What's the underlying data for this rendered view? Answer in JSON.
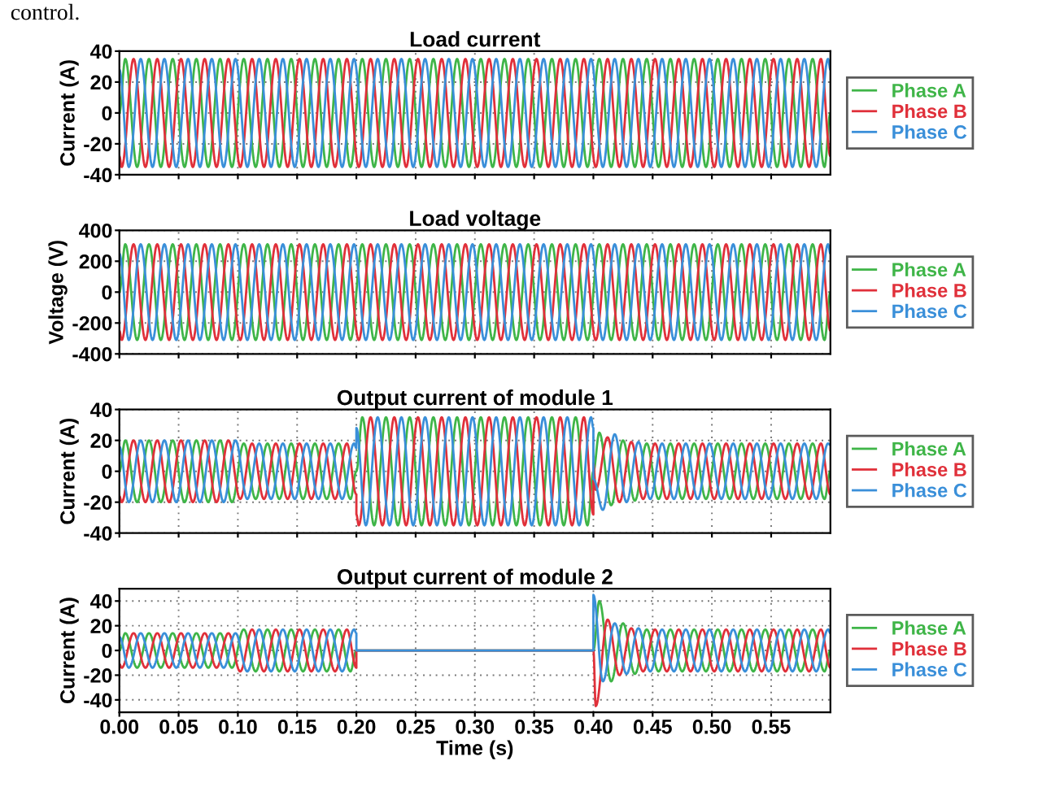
{
  "chart_data": [
    {
      "type": "line",
      "title": "Load current",
      "ylabel": "Current (A)",
      "annotations": [
        "control."
      ],
      "xlim": [
        0,
        0.6
      ],
      "xticks": [
        0,
        0.05,
        0.1,
        0.15,
        0.2,
        0.25,
        0.3,
        0.35,
        0.4,
        0.45,
        0.5,
        0.55
      ],
      "ylim": [
        -40,
        40
      ],
      "yticks": [
        -40,
        -20,
        0,
        20,
        40
      ],
      "grid": true,
      "legend": "right",
      "tick_labels": "y",
      "line_style": "solid",
      "series": [
        {
          "name": "Phase A",
          "color": "#3fb548",
          "x": [
            0,
            0.005,
            0.015,
            0.025,
            0.035,
            0.045,
            0.055,
            0.065,
            0.075,
            0.085,
            0.095,
            0.105,
            0.115,
            0.125,
            0.135,
            0.145,
            0.155,
            0.165,
            0.175,
            0.185,
            0.195,
            0.205,
            0.215,
            0.225,
            0.235,
            0.245,
            0.255,
            0.265,
            0.275,
            0.285,
            0.295,
            0.305,
            0.315,
            0.325,
            0.335,
            0.345,
            0.355,
            0.365,
            0.375,
            0.385,
            0.395,
            0.405,
            0.415,
            0.425,
            0.435,
            0.445,
            0.455,
            0.465,
            0.475,
            0.485,
            0.495,
            0.505,
            0.515,
            0.525,
            0.535,
            0.545,
            0.555,
            0.565,
            0.575,
            0.585,
            0.595,
            0.6
          ],
          "values": [
            0,
            35,
            -35,
            35,
            -35,
            35,
            -35,
            35,
            -35,
            35,
            -35,
            35,
            -35,
            35,
            -35,
            35,
            -35,
            35,
            -35,
            35,
            -35,
            35,
            -35,
            35,
            -35,
            35,
            -35,
            35,
            -35,
            35,
            -35,
            35,
            -35,
            35,
            -35,
            35,
            -35,
            35,
            -35,
            35,
            -35,
            35,
            -35,
            35,
            -35,
            35,
            -35,
            35,
            -35,
            35,
            -35,
            35,
            -35,
            35,
            -35,
            35,
            -35,
            35,
            -35,
            35,
            -35,
            0
          ]
        },
        {
          "name": "Phase B",
          "color": "#e0303a",
          "x": [
            0,
            0.002,
            0.012,
            0.022,
            0.032,
            0.042,
            0.052,
            0.062,
            0.072,
            0.082,
            0.092,
            0.102,
            0.112,
            0.122,
            0.132,
            0.142,
            0.152,
            0.162,
            0.172,
            0.182,
            0.192,
            0.202,
            0.212,
            0.222,
            0.232,
            0.242,
            0.252,
            0.262,
            0.272,
            0.282,
            0.292,
            0.302,
            0.312,
            0.322,
            0.332,
            0.342,
            0.352,
            0.362,
            0.372,
            0.382,
            0.392,
            0.402,
            0.412,
            0.422,
            0.432,
            0.442,
            0.452,
            0.462,
            0.472,
            0.482,
            0.492,
            0.502,
            0.512,
            0.522,
            0.532,
            0.542,
            0.552,
            0.562,
            0.572,
            0.582,
            0.592,
            0.6
          ],
          "values": [
            -28,
            -35,
            35,
            -35,
            35,
            -35,
            35,
            -35,
            35,
            -35,
            35,
            -35,
            35,
            -35,
            35,
            -35,
            35,
            -35,
            35,
            -35,
            35,
            -35,
            35,
            -35,
            35,
            -35,
            35,
            -35,
            35,
            -35,
            35,
            -35,
            35,
            -35,
            35,
            -35,
            35,
            -35,
            35,
            -35,
            35,
            -35,
            35,
            -35,
            35,
            -35,
            35,
            -35,
            35,
            -35,
            35,
            -35,
            35,
            -35,
            35,
            -35,
            35,
            -35,
            35,
            -35,
            35,
            -28
          ]
        },
        {
          "name": "Phase C",
          "color": "#3a8fd9",
          "x": [
            0,
            0.008,
            0.018,
            0.028,
            0.038,
            0.048,
            0.058,
            0.068,
            0.078,
            0.088,
            0.098,
            0.108,
            0.118,
            0.128,
            0.138,
            0.148,
            0.158,
            0.168,
            0.178,
            0.188,
            0.198,
            0.208,
            0.218,
            0.228,
            0.238,
            0.248,
            0.258,
            0.268,
            0.278,
            0.288,
            0.298,
            0.308,
            0.318,
            0.328,
            0.338,
            0.348,
            0.358,
            0.368,
            0.378,
            0.388,
            0.398,
            0.408,
            0.418,
            0.428,
            0.438,
            0.448,
            0.458,
            0.468,
            0.478,
            0.488,
            0.498,
            0.508,
            0.518,
            0.528,
            0.538,
            0.548,
            0.558,
            0.568,
            0.578,
            0.588,
            0.598,
            0.6
          ],
          "values": [
            28,
            -35,
            35,
            -35,
            35,
            -35,
            35,
            -35,
            35,
            -35,
            35,
            -35,
            35,
            -35,
            35,
            -35,
            35,
            -35,
            35,
            -35,
            35,
            -35,
            35,
            -35,
            35,
            -35,
            35,
            -35,
            35,
            -35,
            35,
            -35,
            35,
            -35,
            35,
            -35,
            35,
            -35,
            35,
            -35,
            35,
            -35,
            35,
            -35,
            35,
            -35,
            35,
            -35,
            35,
            -35,
            35,
            -35,
            35,
            -35,
            35,
            -35,
            35,
            -35,
            35,
            -35,
            35,
            28
          ]
        }
      ]
    },
    {
      "type": "line",
      "title": "Load voltage",
      "ylabel": "Voltage (V)",
      "xlim": [
        0,
        0.6
      ],
      "xticks": [
        0,
        0.05,
        0.1,
        0.15,
        0.2,
        0.25,
        0.3,
        0.35,
        0.4,
        0.45,
        0.5,
        0.55
      ],
      "ylim": [
        -400,
        400
      ],
      "yticks": [
        -400,
        -200,
        0,
        200,
        400
      ],
      "grid": true,
      "legend": "right",
      "tick_labels": "y",
      "line_style": "solid",
      "series": [
        {
          "name": "Phase A",
          "color": "#3fb548",
          "x": [
            0,
            0.005,
            0.015,
            0.025,
            0.035,
            0.045,
            0.055,
            0.065,
            0.075,
            0.085,
            0.095,
            0.105,
            0.115,
            0.125,
            0.135,
            0.145,
            0.155,
            0.165,
            0.175,
            0.185,
            0.195,
            0.205,
            0.215,
            0.225,
            0.235,
            0.245,
            0.255,
            0.265,
            0.275,
            0.285,
            0.295,
            0.305,
            0.315,
            0.325,
            0.335,
            0.345,
            0.355,
            0.365,
            0.375,
            0.385,
            0.395,
            0.405,
            0.415,
            0.425,
            0.435,
            0.445,
            0.455,
            0.465,
            0.475,
            0.485,
            0.495,
            0.505,
            0.515,
            0.525,
            0.535,
            0.545,
            0.555,
            0.565,
            0.575,
            0.585,
            0.595,
            0.6
          ],
          "values": [
            0,
            310,
            -310,
            310,
            -310,
            310,
            -310,
            310,
            -310,
            310,
            -310,
            310,
            -310,
            310,
            -310,
            310,
            -310,
            310,
            -310,
            310,
            -310,
            310,
            -310,
            310,
            -310,
            310,
            -310,
            310,
            -310,
            310,
            -310,
            310,
            -310,
            310,
            -310,
            310,
            -310,
            310,
            -310,
            310,
            -310,
            310,
            -310,
            310,
            -310,
            310,
            -310,
            310,
            -310,
            310,
            -310,
            310,
            -310,
            310,
            -310,
            310,
            -310,
            310,
            -310,
            310,
            -310,
            0
          ]
        },
        {
          "name": "Phase B",
          "color": "#e0303a",
          "x": [
            0,
            0.002,
            0.012,
            0.022,
            0.032,
            0.042,
            0.052,
            0.062,
            0.072,
            0.082,
            0.092,
            0.102,
            0.112,
            0.122,
            0.132,
            0.142,
            0.152,
            0.162,
            0.172,
            0.182,
            0.192,
            0.202,
            0.212,
            0.222,
            0.232,
            0.242,
            0.252,
            0.262,
            0.272,
            0.282,
            0.292,
            0.302,
            0.312,
            0.322,
            0.332,
            0.342,
            0.352,
            0.362,
            0.372,
            0.382,
            0.392,
            0.402,
            0.412,
            0.422,
            0.432,
            0.442,
            0.452,
            0.462,
            0.472,
            0.482,
            0.492,
            0.502,
            0.512,
            0.522,
            0.532,
            0.542,
            0.552,
            0.562,
            0.572,
            0.582,
            0.592,
            0.6
          ],
          "values": [
            -250,
            -310,
            310,
            -310,
            310,
            -310,
            310,
            -310,
            310,
            -310,
            310,
            -310,
            310,
            -310,
            310,
            -310,
            310,
            -310,
            310,
            -310,
            310,
            -310,
            310,
            -310,
            310,
            -310,
            310,
            -310,
            310,
            -310,
            310,
            -310,
            310,
            -310,
            310,
            -310,
            310,
            -310,
            310,
            -310,
            310,
            -310,
            310,
            -310,
            310,
            -310,
            310,
            -310,
            310,
            -310,
            310,
            -310,
            310,
            -310,
            310,
            -310,
            310,
            -310,
            310,
            -310,
            310,
            -250
          ]
        },
        {
          "name": "Phase C",
          "color": "#3a8fd9",
          "x": [
            0,
            0.008,
            0.018,
            0.028,
            0.038,
            0.048,
            0.058,
            0.068,
            0.078,
            0.088,
            0.098,
            0.108,
            0.118,
            0.128,
            0.138,
            0.148,
            0.158,
            0.168,
            0.178,
            0.188,
            0.198,
            0.208,
            0.218,
            0.228,
            0.238,
            0.248,
            0.258,
            0.268,
            0.278,
            0.288,
            0.298,
            0.308,
            0.318,
            0.328,
            0.338,
            0.348,
            0.358,
            0.368,
            0.378,
            0.388,
            0.398,
            0.408,
            0.418,
            0.428,
            0.438,
            0.448,
            0.458,
            0.468,
            0.478,
            0.488,
            0.498,
            0.508,
            0.518,
            0.528,
            0.538,
            0.548,
            0.558,
            0.568,
            0.578,
            0.588,
            0.598,
            0.6
          ],
          "values": [
            250,
            -310,
            310,
            -310,
            310,
            -310,
            310,
            -310,
            310,
            -310,
            310,
            -310,
            310,
            -310,
            310,
            -310,
            310,
            -310,
            310,
            -310,
            310,
            -310,
            310,
            -310,
            310,
            -310,
            310,
            -310,
            310,
            -310,
            310,
            -310,
            310,
            -310,
            310,
            -310,
            310,
            -310,
            310,
            -310,
            310,
            -310,
            310,
            -310,
            310,
            -310,
            310,
            -310,
            310,
            -310,
            310,
            -310,
            310,
            -310,
            310,
            -310,
            310,
            -310,
            310,
            -310,
            310,
            250
          ]
        }
      ]
    },
    {
      "type": "line",
      "title": "Output current of module 1",
      "ylabel": "Current (A)",
      "xlim": [
        0,
        0.6
      ],
      "xticks": [
        0,
        0.05,
        0.1,
        0.15,
        0.2,
        0.25,
        0.3,
        0.35,
        0.4,
        0.45,
        0.5,
        0.55
      ],
      "ylim": [
        -40,
        40
      ],
      "yticks": [
        -40,
        -20,
        0,
        20,
        40
      ],
      "grid": true,
      "legend": "right",
      "tick_labels": "y",
      "line_style": "solid",
      "series": [
        {
          "name": "Phase A",
          "color": "#3fb548",
          "x": [
            0,
            0.005,
            0.015,
            0.025,
            0.035,
            0.045,
            0.055,
            0.065,
            0.075,
            0.085,
            0.095,
            0.105,
            0.115,
            0.125,
            0.135,
            0.145,
            0.155,
            0.165,
            0.175,
            0.185,
            0.195,
            0.2,
            0.205,
            0.215,
            0.225,
            0.235,
            0.245,
            0.255,
            0.265,
            0.275,
            0.285,
            0.295,
            0.305,
            0.315,
            0.325,
            0.335,
            0.345,
            0.355,
            0.365,
            0.375,
            0.385,
            0.395,
            0.4,
            0.405,
            0.415,
            0.425,
            0.435,
            0.445,
            0.455,
            0.465,
            0.475,
            0.485,
            0.495,
            0.505,
            0.515,
            0.525,
            0.535,
            0.545,
            0.555,
            0.565,
            0.575,
            0.585,
            0.595,
            0.6
          ],
          "values": [
            0,
            20,
            -20,
            20,
            -20,
            20,
            -20,
            20,
            -20,
            20,
            -20,
            18,
            -18,
            18,
            -18,
            18,
            -18,
            18,
            -18,
            18,
            -18,
            0,
            35,
            -35,
            35,
            -35,
            35,
            -35,
            35,
            -35,
            35,
            -35,
            35,
            -35,
            35,
            -35,
            35,
            -35,
            35,
            -35,
            35,
            -35,
            0,
            25,
            -22,
            20,
            -19,
            18,
            -18,
            18,
            -18,
            18,
            -18,
            18,
            -18,
            18,
            -18,
            18,
            -18,
            18,
            -18,
            18,
            -18,
            0
          ]
        },
        {
          "name": "Phase B",
          "color": "#e0303a",
          "x": [
            0,
            0.002,
            0.012,
            0.022,
            0.032,
            0.042,
            0.052,
            0.062,
            0.072,
            0.082,
            0.092,
            0.102,
            0.112,
            0.122,
            0.132,
            0.142,
            0.152,
            0.162,
            0.172,
            0.182,
            0.192,
            0.2,
            0.2,
            0.202,
            0.212,
            0.222,
            0.232,
            0.242,
            0.252,
            0.262,
            0.272,
            0.282,
            0.292,
            0.302,
            0.312,
            0.322,
            0.332,
            0.342,
            0.352,
            0.362,
            0.372,
            0.382,
            0.392,
            0.4,
            0.4,
            0.402,
            0.412,
            0.422,
            0.432,
            0.442,
            0.452,
            0.462,
            0.472,
            0.482,
            0.492,
            0.502,
            0.512,
            0.522,
            0.532,
            0.542,
            0.552,
            0.562,
            0.572,
            0.582,
            0.592,
            0.6
          ],
          "values": [
            -16,
            -20,
            20,
            -20,
            20,
            -20,
            20,
            -20,
            20,
            -20,
            20,
            -18,
            18,
            -18,
            18,
            -18,
            18,
            -18,
            18,
            -18,
            18,
            -15,
            -28,
            -35,
            35,
            -35,
            35,
            -35,
            35,
            -35,
            35,
            -35,
            35,
            -35,
            35,
            -35,
            35,
            -35,
            35,
            -35,
            35,
            -35,
            35,
            -28,
            5,
            -12,
            22,
            -20,
            19,
            -18,
            18,
            -18,
            18,
            -18,
            18,
            -18,
            18,
            -18,
            18,
            -18,
            18,
            -18,
            18,
            -18,
            18,
            -15
          ]
        },
        {
          "name": "Phase C",
          "color": "#3a8fd9",
          "x": [
            0,
            0.008,
            0.018,
            0.028,
            0.038,
            0.048,
            0.058,
            0.068,
            0.078,
            0.088,
            0.098,
            0.108,
            0.118,
            0.128,
            0.138,
            0.148,
            0.158,
            0.168,
            0.178,
            0.188,
            0.198,
            0.2,
            0.2,
            0.208,
            0.218,
            0.228,
            0.238,
            0.248,
            0.258,
            0.268,
            0.278,
            0.288,
            0.298,
            0.308,
            0.318,
            0.328,
            0.338,
            0.348,
            0.358,
            0.368,
            0.378,
            0.388,
            0.398,
            0.4,
            0.4,
            0.408,
            0.418,
            0.428,
            0.438,
            0.448,
            0.458,
            0.468,
            0.478,
            0.488,
            0.498,
            0.508,
            0.518,
            0.528,
            0.538,
            0.548,
            0.558,
            0.568,
            0.578,
            0.588,
            0.598,
            0.6
          ],
          "values": [
            16,
            -20,
            20,
            -20,
            20,
            -20,
            20,
            -20,
            20,
            -20,
            20,
            -18,
            18,
            -18,
            18,
            -18,
            18,
            -18,
            18,
            -18,
            18,
            15,
            28,
            -35,
            35,
            -35,
            35,
            -35,
            35,
            -35,
            35,
            -35,
            35,
            -35,
            35,
            -35,
            35,
            -35,
            35,
            -35,
            35,
            -35,
            35,
            28,
            -5,
            -25,
            24,
            -20,
            19,
            -18,
            18,
            -18,
            18,
            -18,
            18,
            -18,
            18,
            -18,
            18,
            -18,
            18,
            -18,
            18,
            -18,
            18,
            17
          ]
        }
      ]
    },
    {
      "type": "line",
      "title": "Output current of module 2",
      "ylabel": "Current (A)",
      "xlabel": "Time (s)",
      "xlim": [
        0,
        0.6
      ],
      "xticks": [
        {
          "value": 0,
          "label": "0.00"
        },
        {
          "value": 0.05,
          "label": "0.05"
        },
        {
          "value": 0.1,
          "label": "0.10"
        },
        {
          "value": 0.15,
          "label": "0.15"
        },
        {
          "value": 0.2,
          "label": "0.20"
        },
        {
          "value": 0.25,
          "label": "0.25"
        },
        {
          "value": 0.3,
          "label": "0.30"
        },
        {
          "value": 0.35,
          "label": "0.35"
        },
        {
          "value": 0.4,
          "label": "0.40"
        },
        {
          "value": 0.45,
          "label": "0.45"
        },
        {
          "value": 0.5,
          "label": "0.50"
        },
        {
          "value": 0.55,
          "label": "0.55"
        }
      ],
      "ylim": [
        -50,
        50
      ],
      "yticks": [
        -40,
        -20,
        0,
        20,
        40
      ],
      "grid": true,
      "legend": "right",
      "line_style": "solid",
      "series": [
        {
          "name": "Phase A",
          "color": "#3fb548",
          "x": [
            0,
            0.005,
            0.015,
            0.025,
            0.035,
            0.045,
            0.055,
            0.065,
            0.075,
            0.085,
            0.095,
            0.105,
            0.115,
            0.125,
            0.135,
            0.145,
            0.155,
            0.165,
            0.175,
            0.185,
            0.195,
            0.2,
            0.4,
            0.405,
            0.415,
            0.425,
            0.435,
            0.445,
            0.455,
            0.465,
            0.475,
            0.485,
            0.495,
            0.505,
            0.515,
            0.525,
            0.535,
            0.545,
            0.555,
            0.565,
            0.575,
            0.585,
            0.595,
            0.6
          ],
          "values": [
            0,
            14,
            -14,
            14,
            -14,
            14,
            -14,
            14,
            -14,
            14,
            -14,
            17,
            -17,
            17,
            -17,
            17,
            -17,
            17,
            -17,
            17,
            -17,
            0,
            0,
            40,
            -25,
            22,
            -19,
            17,
            -17,
            17,
            -17,
            17,
            -17,
            17,
            -17,
            17,
            -17,
            17,
            -17,
            17,
            -17,
            17,
            -17,
            0
          ]
        },
        {
          "name": "Phase B",
          "color": "#e0303a",
          "x": [
            0,
            0.002,
            0.012,
            0.022,
            0.032,
            0.042,
            0.052,
            0.062,
            0.072,
            0.082,
            0.092,
            0.102,
            0.112,
            0.122,
            0.132,
            0.142,
            0.152,
            0.162,
            0.172,
            0.182,
            0.192,
            0.2,
            0.2,
            0.4,
            0.402,
            0.412,
            0.422,
            0.432,
            0.442,
            0.452,
            0.462,
            0.472,
            0.482,
            0.492,
            0.502,
            0.512,
            0.522,
            0.532,
            0.542,
            0.552,
            0.562,
            0.572,
            0.582,
            0.592,
            0.6
          ],
          "values": [
            -11,
            -14,
            14,
            -14,
            14,
            -14,
            14,
            -14,
            14,
            -14,
            14,
            -17,
            17,
            -17,
            17,
            -17,
            17,
            -17,
            17,
            -17,
            17,
            -14,
            0,
            0,
            -45,
            25,
            -20,
            18,
            -17,
            17,
            -17,
            17,
            -17,
            17,
            -17,
            17,
            -17,
            17,
            -17,
            17,
            -17,
            17,
            -17,
            17,
            -14
          ]
        },
        {
          "name": "Phase C",
          "color": "#3a8fd9",
          "x": [
            0,
            0.008,
            0.018,
            0.028,
            0.038,
            0.048,
            0.058,
            0.068,
            0.078,
            0.088,
            0.098,
            0.108,
            0.118,
            0.128,
            0.138,
            0.148,
            0.158,
            0.168,
            0.178,
            0.188,
            0.198,
            0.2,
            0.2,
            0.4,
            0.4,
            0.408,
            0.418,
            0.428,
            0.438,
            0.448,
            0.458,
            0.468,
            0.478,
            0.488,
            0.498,
            0.508,
            0.518,
            0.528,
            0.538,
            0.548,
            0.558,
            0.568,
            0.578,
            0.588,
            0.598,
            0.6
          ],
          "values": [
            11,
            -14,
            14,
            -14,
            14,
            -14,
            14,
            -14,
            14,
            -14,
            14,
            -17,
            17,
            -17,
            17,
            -17,
            17,
            -17,
            17,
            -17,
            17,
            14,
            0,
            0,
            45,
            -25,
            22,
            -19,
            18,
            -17,
            17,
            -17,
            17,
            -17,
            17,
            -17,
            17,
            -17,
            17,
            -17,
            17,
            -17,
            17,
            -17,
            17,
            14
          ]
        }
      ]
    }
  ]
}
